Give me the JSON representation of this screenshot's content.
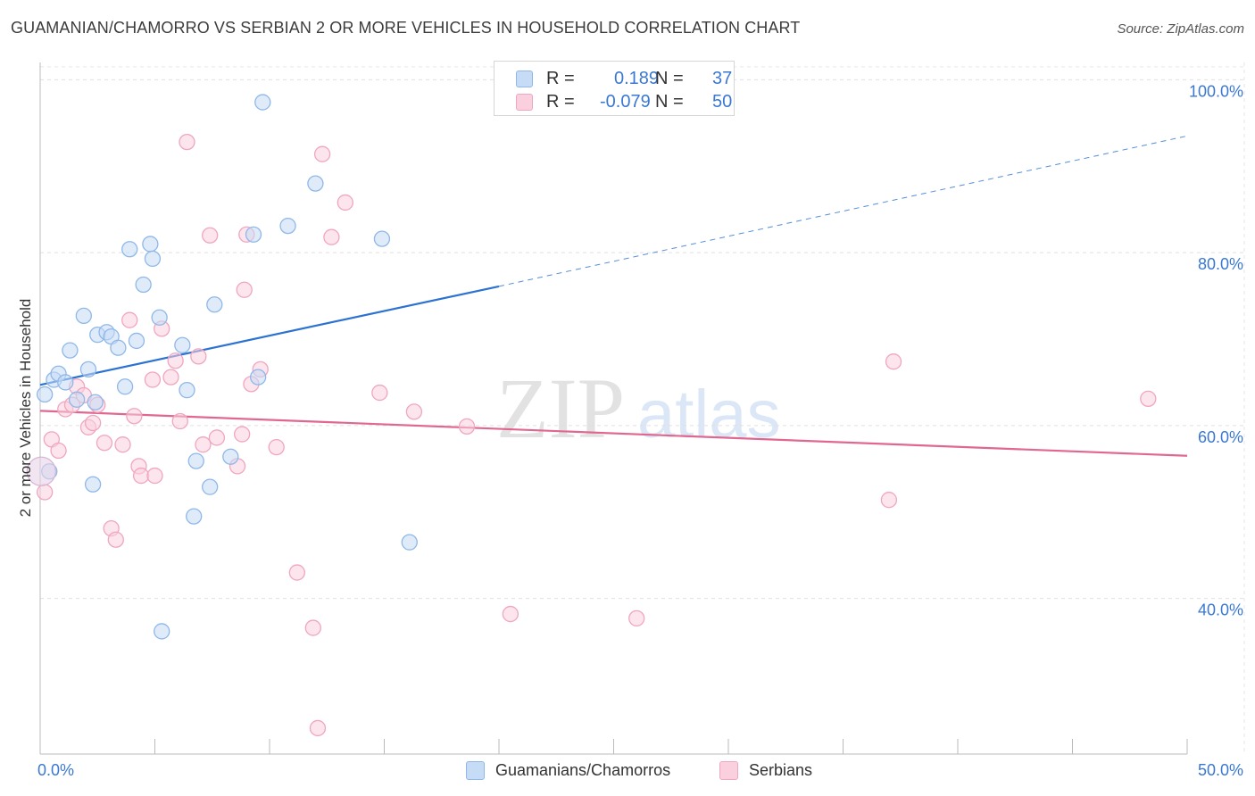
{
  "title": "GUAMANIAN/CHAMORRO VS SERBIAN 2 OR MORE VEHICLES IN HOUSEHOLD CORRELATION CHART",
  "source": "Source: ZipAtlas.com",
  "watermark": {
    "zip": "ZIP",
    "atlas": "atlas"
  },
  "legend": {
    "r_label": "R =",
    "n_label": "N =",
    "rows": [
      {
        "r": "0.189",
        "n": "37"
      },
      {
        "r": "-0.079",
        "n": "50"
      }
    ]
  },
  "bottom_legend": [
    "Guamanians/Chamorros",
    "Serbians"
  ],
  "chart_data": {
    "type": "scatter",
    "title": "GUAMANIAN/CHAMORRO VS SERBIAN 2 OR MORE VEHICLES IN HOUSEHOLD CORRELATION CHART",
    "xlabel": "",
    "ylabel": "2 or more Vehicles in Household",
    "xlim": [
      0,
      50
    ],
    "ylim": [
      22,
      102
    ],
    "x_tick_labels": [
      {
        "value": 0,
        "label": "0.0%"
      },
      {
        "value": 50,
        "label": "50.0%"
      }
    ],
    "x_minor_ticks": [
      5,
      10,
      15,
      20,
      25,
      30,
      35,
      40,
      45
    ],
    "y_ticks": [
      {
        "value": 100,
        "label": "100.0%"
      },
      {
        "value": 80,
        "label": "80.0%"
      },
      {
        "value": 60,
        "label": "60.0%"
      },
      {
        "value": 40,
        "label": "40.0%"
      }
    ],
    "series": [
      {
        "name": "Guamanians/Chamorros",
        "color": "#8fb8e8",
        "fill": "#c6dbf5",
        "line_color": "#2b72d2",
        "r": 0.189,
        "n": 37,
        "trend": {
          "x0": 0,
          "y0": 64.7,
          "x1": 20,
          "y1": 76.1,
          "dash_x1": 50,
          "dash_y1": 93.5
        },
        "points": [
          [
            0.2,
            63.6
          ],
          [
            0.6,
            65.3
          ],
          [
            0.8,
            66.0
          ],
          [
            1.1,
            65.0
          ],
          [
            1.3,
            68.7
          ],
          [
            1.6,
            63.0
          ],
          [
            1.9,
            72.7
          ],
          [
            2.1,
            66.5
          ],
          [
            2.3,
            53.2
          ],
          [
            2.5,
            70.5
          ],
          [
            2.9,
            70.8
          ],
          [
            3.1,
            70.3
          ],
          [
            3.4,
            69.0
          ],
          [
            3.7,
            64.5
          ],
          [
            3.9,
            80.4
          ],
          [
            4.2,
            69.8
          ],
          [
            4.5,
            76.3
          ],
          [
            4.8,
            81.0
          ],
          [
            4.9,
            79.3
          ],
          [
            5.2,
            72.5
          ],
          [
            5.3,
            36.2
          ],
          [
            6.2,
            69.3
          ],
          [
            6.4,
            64.1
          ],
          [
            6.7,
            49.5
          ],
          [
            6.8,
            55.9
          ],
          [
            7.4,
            52.9
          ],
          [
            7.6,
            74.0
          ],
          [
            8.3,
            56.4
          ],
          [
            9.3,
            82.1
          ],
          [
            9.5,
            65.6
          ],
          [
            9.7,
            97.4
          ],
          [
            10.8,
            83.1
          ],
          [
            12.0,
            88.0
          ],
          [
            14.9,
            81.6
          ],
          [
            16.1,
            46.5
          ],
          [
            0.4,
            54.7
          ],
          [
            2.4,
            62.7
          ]
        ]
      },
      {
        "name": "Serbians",
        "color": "#f0a6bf",
        "fill": "#fad0de",
        "line_color": "#e06890",
        "r": -0.079,
        "n": 50,
        "trend": {
          "x0": 0,
          "y0": 61.7,
          "x1": 50,
          "y1": 56.5
        },
        "points": [
          [
            0.2,
            52.3
          ],
          [
            0.5,
            58.4
          ],
          [
            0.8,
            57.1
          ],
          [
            1.1,
            61.9
          ],
          [
            1.4,
            62.4
          ],
          [
            1.6,
            64.5
          ],
          [
            1.9,
            63.5
          ],
          [
            2.1,
            59.8
          ],
          [
            2.3,
            60.3
          ],
          [
            2.5,
            62.4
          ],
          [
            2.8,
            58.0
          ],
          [
            3.1,
            48.1
          ],
          [
            3.3,
            46.8
          ],
          [
            3.6,
            57.8
          ],
          [
            3.9,
            72.2
          ],
          [
            4.1,
            61.1
          ],
          [
            4.3,
            55.3
          ],
          [
            4.4,
            54.2
          ],
          [
            4.9,
            65.3
          ],
          [
            5.0,
            54.2
          ],
          [
            5.3,
            71.2
          ],
          [
            5.7,
            65.6
          ],
          [
            5.9,
            67.5
          ],
          [
            6.1,
            60.5
          ],
          [
            6.4,
            92.8
          ],
          [
            6.9,
            68.0
          ],
          [
            7.1,
            57.8
          ],
          [
            7.4,
            82.0
          ],
          [
            7.7,
            58.6
          ],
          [
            8.6,
            55.3
          ],
          [
            8.8,
            59.0
          ],
          [
            8.9,
            75.7
          ],
          [
            9.0,
            82.1
          ],
          [
            9.2,
            64.8
          ],
          [
            9.6,
            66.5
          ],
          [
            10.3,
            57.5
          ],
          [
            11.2,
            43.0
          ],
          [
            11.9,
            36.6
          ],
          [
            12.1,
            25.0
          ],
          [
            12.3,
            91.4
          ],
          [
            12.7,
            81.8
          ],
          [
            13.3,
            85.8
          ],
          [
            14.8,
            63.8
          ],
          [
            16.3,
            61.6
          ],
          [
            18.6,
            59.9
          ],
          [
            20.5,
            38.2
          ],
          [
            26.0,
            37.7
          ],
          [
            37.0,
            51.4
          ],
          [
            37.2,
            67.4
          ],
          [
            48.3,
            63.1
          ]
        ]
      }
    ]
  }
}
